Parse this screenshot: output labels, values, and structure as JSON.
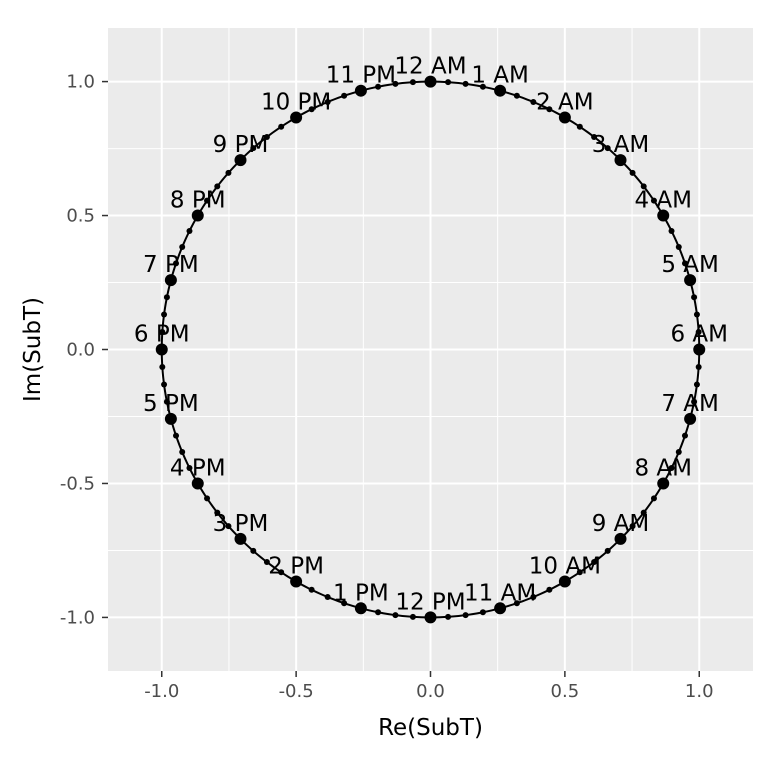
{
  "chart_data": {
    "type": "scatter",
    "title": "",
    "xlabel": "Re(SubT)",
    "ylabel": "Im(SubT)",
    "xlim": [
      -1.2,
      1.2
    ],
    "ylim": [
      -1.2,
      1.2
    ],
    "x_ticks": [
      "-1.0",
      "-0.5",
      "0.0",
      "0.5",
      "1.0"
    ],
    "y_ticks": [
      "-1.0",
      "-0.5",
      "0.0",
      "0.5",
      "1.0"
    ],
    "x_tick_values": [
      -1.0,
      -0.5,
      0.0,
      0.5,
      1.0
    ],
    "y_tick_values": [
      -1.0,
      -0.5,
      0.0,
      0.5,
      1.0
    ],
    "grid": true,
    "legend": "none",
    "background": "#ebebeb",
    "grid_color": "#ffffff",
    "mark_color": "#000000",
    "circle_path": {
      "radius": 1.0,
      "center": [
        0.0,
        0.0
      ],
      "sub_points": 96
    },
    "hour_points": [
      {
        "label": "12 AM",
        "x": 0.0,
        "y": 1.0
      },
      {
        "label": "1 AM",
        "x": 0.259,
        "y": 0.966
      },
      {
        "label": "2 AM",
        "x": 0.5,
        "y": 0.866
      },
      {
        "label": "3 AM",
        "x": 0.707,
        "y": 0.707
      },
      {
        "label": "4 AM",
        "x": 0.866,
        "y": 0.5
      },
      {
        "label": "5 AM",
        "x": 0.966,
        "y": 0.259
      },
      {
        "label": "6 AM",
        "x": 1.0,
        "y": 0.0
      },
      {
        "label": "7 AM",
        "x": 0.966,
        "y": -0.259
      },
      {
        "label": "8 AM",
        "x": 0.866,
        "y": -0.5
      },
      {
        "label": "9 AM",
        "x": 0.707,
        "y": -0.707
      },
      {
        "label": "10 AM",
        "x": 0.5,
        "y": -0.866
      },
      {
        "label": "11 AM",
        "x": 0.259,
        "y": -0.966
      },
      {
        "label": "12 PM",
        "x": 0.0,
        "y": -1.0
      },
      {
        "label": "1 PM",
        "x": -0.259,
        "y": -0.966
      },
      {
        "label": "2 PM",
        "x": -0.5,
        "y": -0.866
      },
      {
        "label": "3 PM",
        "x": -0.707,
        "y": -0.707
      },
      {
        "label": "4 PM",
        "x": -0.866,
        "y": -0.5
      },
      {
        "label": "5 PM",
        "x": -0.966,
        "y": -0.259
      },
      {
        "label": "6 PM",
        "x": -1.0,
        "y": 0.0
      },
      {
        "label": "7 PM",
        "x": -0.966,
        "y": 0.259
      },
      {
        "label": "8 PM",
        "x": -0.866,
        "y": 0.5
      },
      {
        "label": "9 PM",
        "x": -0.707,
        "y": 0.707
      },
      {
        "label": "10 PM",
        "x": -0.5,
        "y": 0.866
      },
      {
        "label": "11 PM",
        "x": -0.259,
        "y": 0.966
      }
    ]
  }
}
